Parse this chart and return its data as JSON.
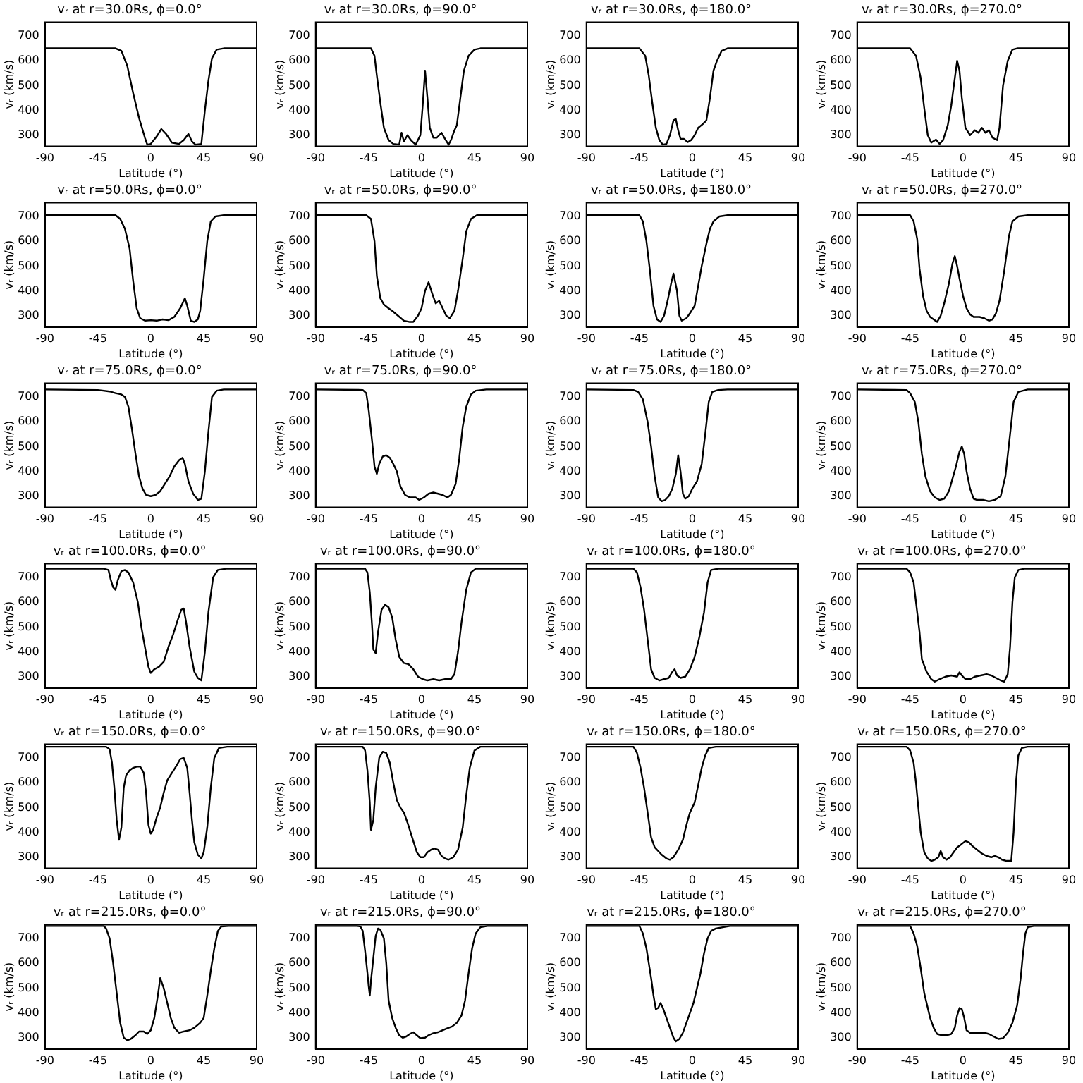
{
  "chart_data": [
    {
      "type": "line",
      "title": "vᵣ at r=30.0Rs, ϕ=0.0°",
      "xlabel": "Latitude (°)",
      "ylabel": "vᵣ (km/s)",
      "xlim": [
        -90,
        90
      ],
      "xticks": [
        -90,
        -45,
        0,
        45,
        90
      ],
      "ylim": [
        255,
        755
      ],
      "yticks": [
        300,
        400,
        500,
        600,
        700
      ],
      "color": "#000000",
      "x": [
        -90,
        -30,
        -25,
        -20,
        -15,
        -10,
        -5,
        -3,
        0,
        5,
        9,
        13,
        18,
        24,
        28,
        32,
        35,
        38,
        43,
        46,
        49,
        52,
        56,
        62,
        90
      ],
      "values": [
        650,
        650,
        640,
        580,
        470,
        370,
        290,
        262,
        265,
        295,
        325,
        305,
        270,
        265,
        280,
        305,
        275,
        262,
        265,
        400,
        520,
        610,
        645,
        650,
        650
      ]
    },
    {
      "type": "line",
      "title": "vᵣ at r=30.0Rs, ϕ=90.0°",
      "xlabel": "Latitude (°)",
      "ylabel": "vᵣ (km/s)",
      "xlim": [
        -90,
        90
      ],
      "xticks": [
        -90,
        -45,
        0,
        45,
        90
      ],
      "ylim": [
        255,
        755
      ],
      "yticks": [
        300,
        400,
        500,
        600,
        700
      ],
      "color": "#000000",
      "x": [
        -90,
        -43,
        -40,
        -38,
        -35,
        -32,
        -28,
        -24,
        -19,
        -17,
        -15,
        -12,
        -9,
        -5,
        -1,
        1,
        3,
        5,
        7,
        10,
        13,
        17,
        20,
        23,
        25,
        28,
        30,
        33,
        36,
        40,
        45,
        50,
        90
      ],
      "values": [
        650,
        650,
        620,
        540,
        430,
        330,
        280,
        265,
        262,
        310,
        275,
        300,
        280,
        262,
        300,
        420,
        560,
        450,
        330,
        290,
        290,
        310,
        285,
        262,
        280,
        320,
        340,
        450,
        560,
        620,
        645,
        650,
        650
      ]
    },
    {
      "type": "line",
      "title": "vᵣ at r=30.0Rs, ϕ=180.0°",
      "xlabel": "Latitude (°)",
      "ylabel": "vᵣ (km/s)",
      "xlim": [
        -90,
        90
      ],
      "xticks": [
        -90,
        -45,
        0,
        45,
        90
      ],
      "ylim": [
        255,
        755
      ],
      "yticks": [
        300,
        400,
        500,
        600,
        700
      ],
      "color": "#000000",
      "x": [
        -90,
        -45,
        -40,
        -37,
        -34,
        -31,
        -28,
        -25,
        -22,
        -19,
        -16,
        -14,
        -12,
        -10,
        -7,
        -4,
        -1,
        2,
        5,
        9,
        12,
        15,
        18,
        21,
        25,
        30,
        90
      ],
      "values": [
        650,
        650,
        620,
        540,
        430,
        330,
        280,
        262,
        265,
        300,
        360,
        365,
        320,
        285,
        285,
        272,
        280,
        300,
        330,
        345,
        360,
        450,
        560,
        600,
        640,
        650,
        650
      ]
    },
    {
      "type": "line",
      "title": "vᵣ at r=30.0Rs, ϕ=270.0°",
      "xlabel": "Latitude (°)",
      "ylabel": "vᵣ (km/s)",
      "xlim": [
        -90,
        90
      ],
      "xticks": [
        -90,
        -45,
        0,
        45,
        90
      ],
      "ylim": [
        255,
        755
      ],
      "yticks": [
        300,
        400,
        500,
        600,
        700
      ],
      "color": "#000000",
      "x": [
        -90,
        -45,
        -40,
        -36,
        -33,
        -30,
        -27,
        -23,
        -20,
        -17,
        -13,
        -10,
        -7,
        -5,
        -3,
        -1,
        2,
        6,
        10,
        13,
        16,
        19,
        22,
        25,
        29,
        31,
        34,
        38,
        42,
        46,
        90
      ],
      "values": [
        650,
        650,
        620,
        530,
        410,
        300,
        270,
        282,
        265,
        280,
        340,
        420,
        530,
        600,
        560,
        450,
        330,
        300,
        320,
        310,
        330,
        310,
        320,
        290,
        280,
        330,
        500,
        600,
        645,
        650,
        650
      ]
    },
    {
      "type": "line",
      "title": "vᵣ at r=50.0Rs, ϕ=0.0°",
      "xlabel": "Latitude (°)",
      "ylabel": "vᵣ (km/s)",
      "xlim": [
        -90,
        90
      ],
      "xticks": [
        -90,
        -45,
        0,
        45,
        90
      ],
      "ylim": [
        255,
        755
      ],
      "yticks": [
        300,
        400,
        500,
        600,
        700
      ],
      "color": "#000000",
      "x": [
        -90,
        -30,
        -26,
        -22,
        -18,
        -15,
        -12,
        -9,
        -5,
        0,
        5,
        10,
        15,
        20,
        25,
        29,
        31,
        34,
        37,
        40,
        42,
        45,
        48,
        51,
        55,
        62,
        90
      ],
      "values": [
        705,
        705,
        690,
        650,
        570,
        440,
        330,
        290,
        280,
        282,
        280,
        285,
        282,
        295,
        330,
        370,
        340,
        280,
        275,
        285,
        320,
        450,
        600,
        680,
        700,
        705,
        705
      ]
    },
    {
      "type": "line",
      "title": "vᵣ at r=50.0Rs, ϕ=90.0°",
      "xlabel": "Latitude (°)",
      "ylabel": "vᵣ (km/s)",
      "xlim": [
        -90,
        90
      ],
      "xticks": [
        -90,
        -45,
        0,
        45,
        90
      ],
      "ylim": [
        255,
        755
      ],
      "yticks": [
        300,
        400,
        500,
        600,
        700
      ],
      "color": "#000000",
      "x": [
        -90,
        -47,
        -43,
        -40,
        -38,
        -35,
        -32,
        -28,
        -25,
        -20,
        -15,
        -10,
        -7,
        -3,
        0,
        3,
        6,
        9,
        12,
        15,
        18,
        21,
        24,
        28,
        31,
        35,
        38,
        42,
        47,
        90
      ],
      "values": [
        705,
        705,
        690,
        600,
        460,
        370,
        345,
        330,
        320,
        300,
        280,
        275,
        275,
        300,
        330,
        400,
        435,
        390,
        350,
        360,
        330,
        300,
        290,
        320,
        400,
        530,
        640,
        690,
        705,
        705
      ]
    },
    {
      "type": "line",
      "title": "vᵣ at r=50.0Rs, ϕ=180.0°",
      "xlabel": "Latitude (°)",
      "ylabel": "vᵣ (km/s)",
      "xlim": [
        -90,
        90
      ],
      "xticks": [
        -90,
        -45,
        0,
        45,
        90
      ],
      "ylim": [
        255,
        755
      ],
      "yticks": [
        300,
        400,
        500,
        600,
        700
      ],
      "color": "#000000",
      "x": [
        -90,
        -45,
        -42,
        -39,
        -36,
        -33,
        -30,
        -27,
        -24,
        -21,
        -18,
        -16,
        -13,
        -11,
        -9,
        -5,
        -2,
        2,
        5,
        8,
        12,
        15,
        18,
        23,
        30,
        90
      ],
      "values": [
        705,
        705,
        680,
        600,
        480,
        340,
        285,
        275,
        300,
        360,
        430,
        470,
        400,
        300,
        280,
        290,
        310,
        340,
        420,
        500,
        590,
        650,
        680,
        700,
        705,
        705
      ]
    },
    {
      "type": "line",
      "title": "vᵣ at r=50.0Rs, ϕ=270.0°",
      "xlabel": "Latitude (°)",
      "ylabel": "vᵣ (km/s)",
      "xlim": [
        -90,
        90
      ],
      "xticks": [
        -90,
        -45,
        0,
        45,
        90
      ],
      "ylim": [
        255,
        755
      ],
      "yticks": [
        300,
        400,
        500,
        600,
        700
      ],
      "color": "#000000",
      "x": [
        -90,
        -45,
        -42,
        -39,
        -37,
        -34,
        -31,
        -28,
        -25,
        -22,
        -19,
        -16,
        -12,
        -9,
        -7,
        -5,
        -3,
        0,
        3,
        6,
        9,
        14,
        18,
        22,
        25,
        28,
        31,
        35,
        39,
        42,
        47,
        55,
        90
      ],
      "values": [
        705,
        705,
        680,
        610,
        490,
        380,
        320,
        295,
        285,
        275,
        300,
        350,
        430,
        510,
        540,
        500,
        450,
        380,
        330,
        305,
        295,
        295,
        290,
        280,
        285,
        310,
        360,
        480,
        620,
        680,
        700,
        705,
        705
      ]
    },
    {
      "type": "line",
      "title": "vᵣ at r=75.0Rs, ϕ=0.0°",
      "xlabel": "Latitude (°)",
      "ylabel": "vᵣ (km/s)",
      "xlim": [
        -90,
        90
      ],
      "xticks": [
        -90,
        -45,
        0,
        45,
        90
      ],
      "ylim": [
        255,
        755
      ],
      "yticks": [
        300,
        400,
        500,
        600,
        700
      ],
      "color": "#000000",
      "x": [
        -90,
        -45,
        -35,
        -30,
        -25,
        -22,
        -19,
        -16,
        -13,
        -10,
        -7,
        -4,
        0,
        4,
        8,
        12,
        16,
        20,
        24,
        27,
        29,
        32,
        36,
        40,
        43,
        46,
        49,
        52,
        56,
        62,
        90
      ],
      "values": [
        730,
        728,
        722,
        715,
        710,
        700,
        660,
        570,
        470,
        380,
        330,
        305,
        300,
        305,
        320,
        350,
        380,
        420,
        445,
        455,
        430,
        360,
        310,
        285,
        290,
        400,
        560,
        700,
        725,
        730,
        730
      ]
    },
    {
      "type": "line",
      "title": "vᵣ at r=75.0Rs, ϕ=90.0°",
      "xlabel": "Latitude (°)",
      "ylabel": "vᵣ (km/s)",
      "xlim": [
        -90,
        90
      ],
      "xticks": [
        -90,
        -45,
        0,
        45,
        90
      ],
      "ylim": [
        255,
        755
      ],
      "yticks": [
        300,
        400,
        500,
        600,
        700
      ],
      "color": "#000000",
      "x": [
        -90,
        -50,
        -47,
        -45,
        -42,
        -40,
        -38,
        -36,
        -33,
        -30,
        -27,
        -24,
        -21,
        -18,
        -14,
        -10,
        -5,
        -2,
        2,
        6,
        10,
        14,
        18,
        22,
        25,
        29,
        32,
        35,
        38,
        42,
        46,
        55,
        90
      ],
      "values": [
        730,
        728,
        715,
        650,
        520,
        420,
        390,
        430,
        460,
        465,
        455,
        430,
        400,
        340,
        305,
        295,
        295,
        285,
        295,
        310,
        315,
        310,
        305,
        295,
        305,
        350,
        450,
        580,
        660,
        710,
        725,
        730,
        730
      ]
    },
    {
      "type": "line",
      "title": "vᵣ at r=75.0Rs, ϕ=180.0°",
      "xlabel": "Latitude (°)",
      "ylabel": "vᵣ (km/s)",
      "xlim": [
        -90,
        90
      ],
      "xticks": [
        -90,
        -45,
        0,
        45,
        90
      ],
      "ylim": [
        255,
        755
      ],
      "yticks": [
        300,
        400,
        500,
        600,
        700
      ],
      "color": "#000000",
      "x": [
        -90,
        -50,
        -46,
        -42,
        -38,
        -35,
        -32,
        -29,
        -26,
        -23,
        -20,
        -17,
        -14,
        -12,
        -10,
        -8,
        -6,
        -3,
        0,
        4,
        8,
        11,
        14,
        17,
        22,
        30,
        90
      ],
      "values": [
        730,
        728,
        720,
        690,
        600,
        500,
        380,
        295,
        280,
        285,
        300,
        330,
        390,
        465,
        400,
        310,
        290,
        300,
        330,
        360,
        430,
        550,
        680,
        720,
        728,
        730,
        730
      ]
    },
    {
      "type": "line",
      "title": "vᵣ at r=75.0Rs, ϕ=270.0°",
      "xlabel": "Latitude (°)",
      "ylabel": "vᵣ (km/s)",
      "xlim": [
        -90,
        90
      ],
      "xticks": [
        -90,
        -45,
        0,
        45,
        90
      ],
      "ylim": [
        255,
        755
      ],
      "yticks": [
        300,
        400,
        500,
        600,
        700
      ],
      "color": "#000000",
      "x": [
        -90,
        -48,
        -45,
        -41,
        -38,
        -35,
        -32,
        -28,
        -24,
        -20,
        -16,
        -12,
        -9,
        -6,
        -3,
        -1,
        1,
        3,
        6,
        9,
        12,
        17,
        22,
        27,
        32,
        36,
        40,
        43,
        47,
        55,
        90
      ],
      "values": [
        730,
        728,
        715,
        680,
        600,
        470,
        380,
        320,
        295,
        285,
        290,
        320,
        370,
        420,
        480,
        500,
        470,
        400,
        330,
        290,
        285,
        285,
        280,
        285,
        300,
        380,
        550,
        680,
        720,
        730,
        730
      ]
    },
    {
      "type": "line",
      "title": "vᵣ at r=100.0Rs, ϕ=0.0°",
      "xlabel": "Latitude (°)",
      "ylabel": "vᵣ (km/s)",
      "xlim": [
        -90,
        90
      ],
      "xticks": [
        -90,
        -45,
        0,
        45,
        90
      ],
      "ylim": [
        255,
        755
      ],
      "yticks": [
        300,
        400,
        500,
        600,
        700
      ],
      "color": "#000000",
      "x": [
        -90,
        -40,
        -36,
        -34,
        -32,
        -30,
        -28,
        -25,
        -22,
        -19,
        -15,
        -11,
        -8,
        -5,
        -2,
        0,
        3,
        7,
        11,
        15,
        19,
        23,
        26,
        28,
        30,
        33,
        37,
        40,
        43,
        46,
        49,
        53,
        57,
        64,
        90
      ],
      "values": [
        735,
        735,
        730,
        690,
        660,
        650,
        690,
        725,
        730,
        720,
        680,
        600,
        500,
        420,
        340,
        315,
        330,
        340,
        360,
        420,
        470,
        530,
        570,
        575,
        520,
        420,
        320,
        295,
        285,
        400,
        560,
        700,
        730,
        735,
        735
      ]
    },
    {
      "type": "line",
      "title": "vᵣ at r=100.0Rs, ϕ=90.0°",
      "xlabel": "Latitude (°)",
      "ylabel": "vᵣ (km/s)",
      "xlim": [
        -90,
        90
      ],
      "xticks": [
        -90,
        -45,
        0,
        45,
        90
      ],
      "ylim": [
        255,
        755
      ],
      "yticks": [
        300,
        400,
        500,
        600,
        700
      ],
      "color": "#000000",
      "x": [
        -90,
        -48,
        -46,
        -44,
        -42,
        -41,
        -39,
        -37,
        -34,
        -31,
        -28,
        -25,
        -22,
        -19,
        -15,
        -11,
        -7,
        -3,
        1,
        5,
        10,
        15,
        20,
        25,
        28,
        31,
        34,
        38,
        42,
        46,
        90
      ],
      "values": [
        735,
        735,
        720,
        640,
        500,
        410,
        395,
        480,
        570,
        590,
        580,
        540,
        450,
        380,
        355,
        350,
        330,
        300,
        290,
        285,
        290,
        285,
        290,
        290,
        310,
        400,
        520,
        650,
        720,
        735,
        735
      ]
    },
    {
      "type": "line",
      "title": "vᵣ at r=100.0Rs, ϕ=180.0°",
      "xlabel": "Latitude (°)",
      "ylabel": "vᵣ (km/s)",
      "xlim": [
        -90,
        90
      ],
      "xticks": [
        -90,
        -45,
        0,
        45,
        90
      ],
      "ylim": [
        255,
        755
      ],
      "yticks": [
        300,
        400,
        500,
        600,
        700
      ],
      "color": "#000000",
      "x": [
        -90,
        -50,
        -47,
        -44,
        -41,
        -38,
        -35,
        -32,
        -28,
        -24,
        -20,
        -17,
        -15,
        -13,
        -10,
        -6,
        -2,
        2,
        6,
        10,
        13,
        16,
        22,
        90
      ],
      "values": [
        735,
        735,
        720,
        660,
        570,
        450,
        330,
        295,
        285,
        290,
        295,
        320,
        330,
        305,
        295,
        300,
        330,
        380,
        460,
        560,
        680,
        730,
        735,
        735
      ]
    },
    {
      "type": "line",
      "title": "vᵣ at r=100.0Rs, ϕ=270.0°",
      "xlabel": "Latitude (°)",
      "ylabel": "vᵣ (km/s)",
      "xlim": [
        -90,
        90
      ],
      "xticks": [
        -90,
        -45,
        0,
        45,
        90
      ],
      "ylim": [
        255,
        755
      ],
      "yticks": [
        300,
        400,
        500,
        600,
        700
      ],
      "color": "#000000",
      "x": [
        -90,
        -48,
        -45,
        -42,
        -40,
        -37,
        -35,
        -31,
        -27,
        -24,
        -20,
        -15,
        -10,
        -5,
        -3,
        -1,
        2,
        6,
        10,
        15,
        20,
        24,
        28,
        32,
        35,
        38,
        40,
        42,
        44,
        47,
        52,
        90
      ],
      "values": [
        735,
        735,
        720,
        680,
        600,
        480,
        370,
        320,
        290,
        280,
        290,
        300,
        305,
        300,
        318,
        305,
        290,
        290,
        300,
        305,
        310,
        305,
        295,
        285,
        280,
        310,
        420,
        600,
        700,
        730,
        735,
        735
      ]
    },
    {
      "type": "line",
      "title": "vᵣ at r=150.0Rs, ϕ=0.0°",
      "xlabel": "Latitude (°)",
      "ylabel": "vᵣ (km/s)",
      "xlim": [
        -90,
        90
      ],
      "xticks": [
        -90,
        -45,
        0,
        45,
        90
      ],
      "ylim": [
        255,
        755
      ],
      "yticks": [
        300,
        400,
        500,
        600,
        700
      ],
      "color": "#000000",
      "x": [
        -90,
        -38,
        -35,
        -33,
        -31,
        -29,
        -27,
        -25,
        -23,
        -21,
        -18,
        -15,
        -12,
        -9,
        -6,
        -4,
        -2,
        0,
        2,
        5,
        8,
        11,
        14,
        18,
        22,
        25,
        28,
        31,
        33,
        35,
        37,
        40,
        43,
        45,
        48,
        51,
        54,
        58,
        65,
        90
      ],
      "values": [
        745,
        745,
        735,
        680,
        580,
        450,
        370,
        420,
        580,
        630,
        650,
        660,
        665,
        665,
        640,
        560,
        430,
        395,
        410,
        460,
        500,
        560,
        610,
        640,
        670,
        695,
        700,
        660,
        560,
        450,
        360,
        310,
        295,
        320,
        420,
        580,
        700,
        740,
        745,
        745
      ]
    },
    {
      "type": "line",
      "title": "vᵣ at r=150.0Rs, ϕ=90.0°",
      "xlabel": "Latitude (°)",
      "ylabel": "vᵣ (km/s)",
      "xlim": [
        -90,
        90
      ],
      "xticks": [
        -90,
        -45,
        0,
        45,
        90
      ],
      "ylim": [
        255,
        755
      ],
      "yticks": [
        300,
        400,
        500,
        600,
        700
      ],
      "color": "#000000",
      "x": [
        -90,
        -50,
        -48,
        -46,
        -44,
        -43,
        -41,
        -39,
        -36,
        -33,
        -30,
        -27,
        -24,
        -21,
        -18,
        -15,
        -12,
        -8,
        -4,
        -1,
        2,
        5,
        8,
        11,
        14,
        17,
        20,
        23,
        27,
        31,
        35,
        38,
        41,
        45,
        50,
        90
      ],
      "values": [
        745,
        745,
        730,
        650,
        520,
        410,
        450,
        580,
        700,
        725,
        720,
        680,
        600,
        530,
        500,
        480,
        440,
        380,
        320,
        300,
        300,
        320,
        330,
        335,
        330,
        305,
        295,
        290,
        300,
        330,
        420,
        550,
        660,
        730,
        745,
        745
      ]
    },
    {
      "type": "line",
      "title": "vᵣ at r=150.0Rs, ϕ=180.0°",
      "xlabel": "Latitude (°)",
      "ylabel": "vᵣ (km/s)",
      "xlim": [
        -90,
        90
      ],
      "xticks": [
        -90,
        -45,
        0,
        45,
        90
      ],
      "ylim": [
        255,
        755
      ],
      "yticks": [
        300,
        400,
        500,
        600,
        700
      ],
      "color": "#000000",
      "x": [
        -90,
        -50,
        -47,
        -44,
        -41,
        -38,
        -35,
        -32,
        -29,
        -26,
        -22,
        -19,
        -16,
        -12,
        -8,
        -5,
        -2,
        2,
        5,
        8,
        11,
        14,
        20,
        90
      ],
      "values": [
        745,
        745,
        720,
        660,
        580,
        480,
        380,
        340,
        325,
        310,
        295,
        290,
        300,
        330,
        370,
        430,
        480,
        520,
        590,
        660,
        710,
        740,
        745,
        745
      ]
    },
    {
      "type": "line",
      "title": "vᵣ at r=150.0Rs, ϕ=270.0°",
      "xlabel": "Latitude (°)",
      "ylabel": "vᵣ (km/s)",
      "xlim": [
        -90,
        90
      ],
      "xticks": [
        -90,
        -45,
        0,
        45,
        90
      ],
      "ylim": [
        255,
        755
      ],
      "yticks": [
        300,
        400,
        500,
        600,
        700
      ],
      "color": "#000000",
      "x": [
        -90,
        -48,
        -45,
        -42,
        -40,
        -38,
        -36,
        -33,
        -30,
        -27,
        -24,
        -21,
        -19,
        -17,
        -14,
        -11,
        -8,
        -5,
        -2,
        2,
        5,
        8,
        12,
        16,
        20,
        24,
        27,
        30,
        33,
        37,
        41,
        43,
        45,
        47,
        50,
        55,
        90
      ],
      "values": [
        745,
        745,
        730,
        680,
        600,
        500,
        400,
        320,
        295,
        285,
        290,
        300,
        325,
        300,
        290,
        300,
        320,
        340,
        350,
        365,
        360,
        345,
        330,
        315,
        305,
        300,
        305,
        300,
        290,
        285,
        285,
        400,
        600,
        710,
        740,
        745,
        745
      ]
    },
    {
      "type": "line",
      "title": "vᵣ at r=215.0Rs, ϕ=0.0°",
      "xlabel": "Latitude (°)",
      "ylabel": "vᵣ (km/s)",
      "xlim": [
        -90,
        90
      ],
      "xticks": [
        -90,
        -45,
        0,
        45,
        90
      ],
      "ylim": [
        255,
        755
      ],
      "yticks": [
        300,
        400,
        500,
        600,
        700
      ],
      "color": "#000000",
      "x": [
        -90,
        -40,
        -38,
        -35,
        -32,
        -29,
        -26,
        -23,
        -20,
        -17,
        -13,
        -10,
        -6,
        -3,
        0,
        3,
        6,
        8,
        11,
        14,
        17,
        20,
        24,
        28,
        33,
        37,
        42,
        45,
        48,
        51,
        54,
        57,
        60,
        66,
        90
      ],
      "values": [
        750,
        750,
        740,
        700,
        600,
        480,
        360,
        300,
        290,
        295,
        310,
        325,
        325,
        315,
        330,
        380,
        470,
        540,
        500,
        440,
        380,
        340,
        320,
        325,
        330,
        340,
        360,
        380,
        470,
        570,
        660,
        730,
        748,
        750,
        750
      ]
    },
    {
      "type": "line",
      "title": "vᵣ at r=215.0Rs, ϕ=90.0°",
      "xlabel": "Latitude (°)",
      "ylabel": "vᵣ (km/s)",
      "xlim": [
        -90,
        90
      ],
      "xticks": [
        -90,
        -45,
        0,
        45,
        90
      ],
      "ylim": [
        255,
        755
      ],
      "yticks": [
        300,
        400,
        500,
        600,
        700
      ],
      "color": "#000000",
      "x": [
        -90,
        -55,
        -52,
        -50,
        -48,
        -46,
        -45,
        -44,
        -43,
        -41,
        -39,
        -37,
        -35,
        -32,
        -30,
        -28,
        -25,
        -22,
        -19,
        -16,
        -13,
        -10,
        -7,
        -4,
        -1,
        3,
        6,
        10,
        14,
        18,
        22,
        26,
        30,
        34,
        37,
        40,
        43,
        46,
        50,
        56,
        90
      ],
      "values": [
        750,
        750,
        748,
        730,
        650,
        560,
        510,
        470,
        530,
        620,
        710,
        740,
        735,
        700,
        600,
        450,
        380,
        340,
        310,
        300,
        305,
        315,
        322,
        310,
        298,
        300,
        310,
        318,
        322,
        330,
        338,
        345,
        360,
        390,
        450,
        560,
        660,
        720,
        745,
        750,
        750
      ]
    },
    {
      "type": "line",
      "title": "vᵣ at r=215.0Rs, ϕ=180.0°",
      "xlabel": "Latitude (°)",
      "ylabel": "vᵣ (km/s)",
      "xlim": [
        -90,
        90
      ],
      "xticks": [
        -90,
        -45,
        0,
        45,
        90
      ],
      "ylim": [
        255,
        755
      ],
      "yticks": [
        300,
        400,
        500,
        600,
        700
      ],
      "color": "#000000",
      "x": [
        -90,
        -45,
        -42,
        -39,
        -37,
        -35,
        -33,
        -31,
        -29,
        -27,
        -25,
        -22,
        -19,
        -16,
        -14,
        -11,
        -8,
        -5,
        -2,
        1,
        4,
        7,
        10,
        13,
        16,
        20,
        26,
        32,
        90
      ],
      "values": [
        750,
        750,
        720,
        660,
        600,
        540,
        470,
        415,
        420,
        440,
        420,
        380,
        340,
        300,
        285,
        295,
        320,
        360,
        400,
        440,
        500,
        560,
        640,
        700,
        730,
        740,
        745,
        750,
        750
      ]
    },
    {
      "type": "line",
      "title": "vᵣ at r=215.0Rs, ϕ=270.0°",
      "xlabel": "Latitude (°)",
      "ylabel": "vᵣ (km/s)",
      "xlim": [
        -90,
        90
      ],
      "xticks": [
        -90,
        -45,
        0,
        45,
        90
      ],
      "ylim": [
        255,
        755
      ],
      "yticks": [
        300,
        400,
        500,
        600,
        700
      ],
      "color": "#000000",
      "x": [
        -90,
        -45,
        -42,
        -39,
        -36,
        -33,
        -30,
        -28,
        -25,
        -22,
        -18,
        -14,
        -10,
        -7,
        -5,
        -3,
        -1,
        1,
        3,
        6,
        10,
        14,
        18,
        22,
        26,
        30,
        34,
        38,
        42,
        46,
        49,
        51,
        53,
        55,
        60,
        90
      ],
      "values": [
        750,
        750,
        720,
        670,
        580,
        480,
        420,
        380,
        340,
        315,
        310,
        310,
        315,
        340,
        390,
        420,
        415,
        380,
        330,
        320,
        320,
        320,
        320,
        315,
        305,
        295,
        298,
        320,
        360,
        430,
        540,
        640,
        720,
        745,
        750,
        750
      ]
    }
  ]
}
